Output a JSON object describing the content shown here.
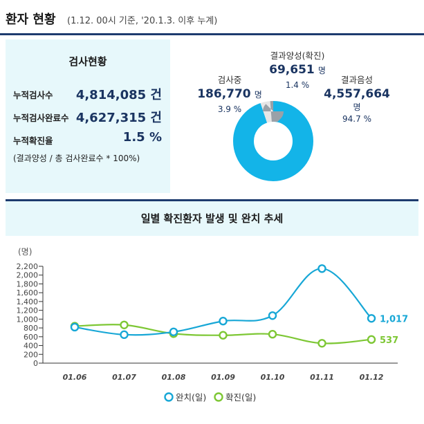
{
  "header": {
    "title": "환자 현황",
    "subtitle": "(1.12. 00시 기준, '20.1.3. 이후 누계)"
  },
  "test_status": {
    "title": "검사현황",
    "stats": [
      {
        "label": "누적검사수",
        "value": "4,814,085 건"
      },
      {
        "label": "누적검사완료수",
        "value": "4,627,315 건"
      },
      {
        "label": "누적확진율",
        "value": "1.5 %"
      }
    ],
    "note": "(결과양성 / 총 검사완료수 * 100%)"
  },
  "donut": {
    "testing": {
      "label": "검사중",
      "value": "186,770",
      "unit": "명",
      "percent": "3.9 %",
      "share": 3.9,
      "color": "#e6e6e6"
    },
    "positive": {
      "label": "결과양성(확진)",
      "value": "69,651",
      "unit": "명",
      "percent": "1.4 %",
      "share": 1.4,
      "color": "#9aa1a8"
    },
    "negative": {
      "label": "결과음성",
      "value": "4,557,664",
      "unit": "명",
      "percent": "94.7 %",
      "share": 94.7,
      "color": "#13b4e8"
    }
  },
  "chart_title": "일별 확진환자 발생 및 완치 추세",
  "chart_data": {
    "type": "line",
    "categories": [
      "01.06",
      "01.07",
      "01.08",
      "01.09",
      "01.10",
      "01.11",
      "01.12"
    ],
    "series": [
      {
        "name": "완치(일)",
        "values": [
          818,
          647,
          710,
          955,
          1080,
          2148,
          1017
        ],
        "color": "#17a7d6",
        "end_label": "1,017"
      },
      {
        "name": "확진(일)",
        "values": [
          839,
          868,
          670,
          633,
          657,
          451,
          537
        ],
        "color": "#7dc734",
        "end_label": "537"
      }
    ],
    "ylabel": "(명)",
    "ylim": [
      0,
      2200
    ],
    "yticks": [
      0,
      200,
      400,
      600,
      800,
      1000,
      1200,
      1400,
      1600,
      1800,
      2000,
      2200
    ],
    "ytick_labels": [
      "0",
      "200",
      "400",
      "600",
      "800",
      "1,000",
      "1,200",
      "1,400",
      "1,600",
      "1,800",
      "2,000",
      "2,200"
    ],
    "grid": false,
    "legend": "bottom"
  }
}
